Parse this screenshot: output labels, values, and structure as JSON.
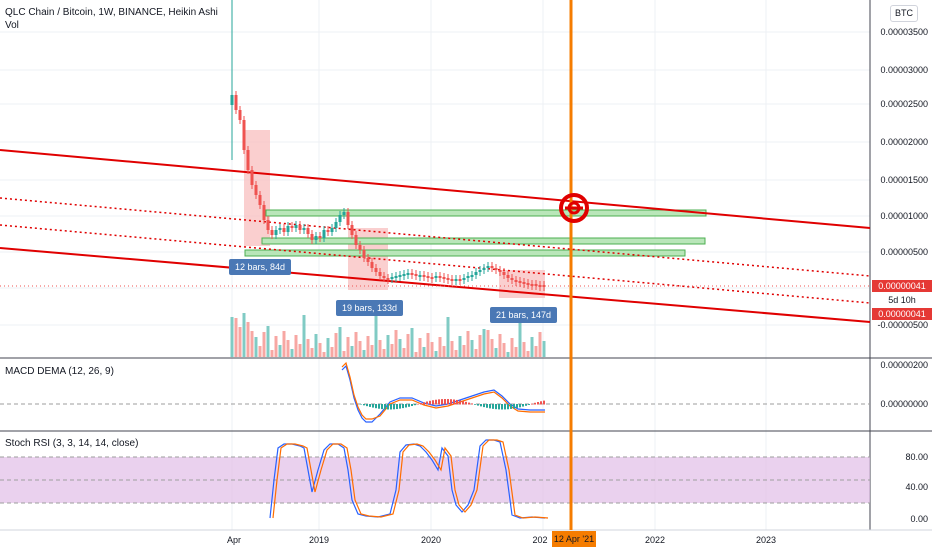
{
  "header": {
    "symbol_line": "QLC Chain / Bitcoin, 1W, BINANCE, Heikin Ashi",
    "vol_label": "Vol",
    "currency_button": "BTC"
  },
  "price_axis": {
    "ticks": [
      "0.00003500",
      "0.00003000",
      "0.00002500",
      "0.00002000",
      "0.00001500",
      "0.00001000",
      "0.00000500",
      "-0.00000500"
    ],
    "last_price": "0.00000041",
    "timer": "5d 10h",
    "last_price_2": "0.00000041"
  },
  "annotations": {
    "bars_1": "12 bars, 84d",
    "bars_2": "19 bars, 133d",
    "bars_3": "21 bars, 147d"
  },
  "macd_panel": {
    "title": "MACD DEMA (12, 26, 9)",
    "ticks": [
      "0.00000200",
      "0.00000000"
    ]
  },
  "stoch_panel": {
    "title": "Stoch RSI (3, 3, 14, 14, close)",
    "ticks": [
      "80.00",
      "40.00",
      "0.00"
    ]
  },
  "time_axis": {
    "labels": [
      "Apr",
      "2019",
      "2020",
      "202",
      "2022",
      "2023"
    ],
    "cursor_date": "12 Apr '21"
  },
  "colors": {
    "bull": "#26a69a",
    "bear": "#ef5350",
    "trend": "#e00000",
    "cursor": "#f57c00",
    "box_green": "#66bb6a",
    "box_red": "#f28b82",
    "stoch_band": "#e1bee7"
  }
}
